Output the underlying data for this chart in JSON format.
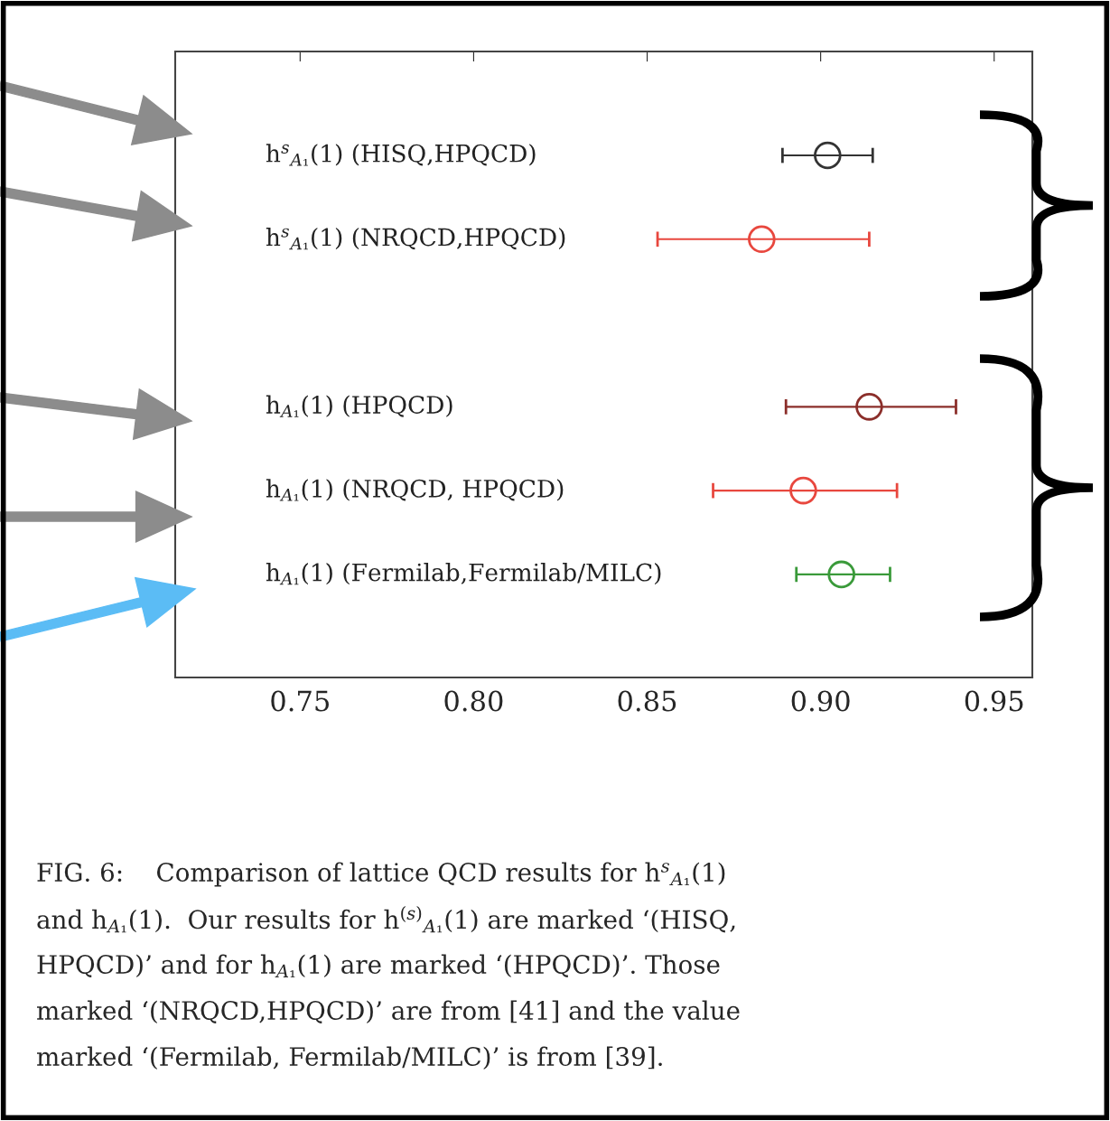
{
  "chart_data": {
    "type": "scatter",
    "orientation": "horizontal",
    "marker": "circle",
    "grid": false,
    "tick_labels": "x",
    "categories": [
      "h$^{s}$$_{A₁}$(1) (HISQ,HPQCD)",
      "h$^{s}$$_{A₁}$(1) (NRQCD,HPQCD)",
      null,
      "h$_{A₁}$(1) (HPQCD)",
      "h$_{A₁}$(1) (NRQCD, HPQCD)",
      "h$_{A₁}$(1) (Fermilab,Fermilab/MILC)"
    ],
    "values": [
      0.902,
      0.883,
      null,
      0.914,
      0.895,
      0.906
    ],
    "errors": [
      [
        0.889,
        0.915
      ],
      [
        0.853,
        0.914
      ],
      null,
      [
        0.89,
        0.939
      ],
      [
        0.869,
        0.922
      ],
      [
        0.893,
        0.92
      ]
    ],
    "colors": [
      "#333333",
      "#e8473e",
      null,
      "#8b2e2a",
      "#e8473e",
      "#3a9a3a"
    ],
    "xlim": [
      0.714,
      0.961
    ],
    "xticks": [
      {
        "value": 0.75,
        "label": "0.75"
      },
      {
        "value": 0.8,
        "label": "0.80"
      },
      {
        "value": 0.85,
        "label": "0.85"
      },
      {
        "value": 0.9,
        "label": "0.90"
      },
      {
        "value": 0.95,
        "label": "0.95"
      }
    ],
    "annotations": [
      "FIG. 6:    Comparison of lattice QCD results for h$^{s}$$_{A₁}$(1)",
      "and h$_{A₁}$(1).  Our results for h$^{(s)}$$_{A₁}$(1) are marked ‘(HISQ,",
      "HPQCD)’ and for h$_{A₁}$(1) are marked ‘(HPQCD)’. Those",
      "marked ‘(NRQCD,HPQCD)’ are from [41] and the value",
      "marked ‘(Fermilab, Fermilab/MILC)’ is from [39]."
    ]
  }
}
